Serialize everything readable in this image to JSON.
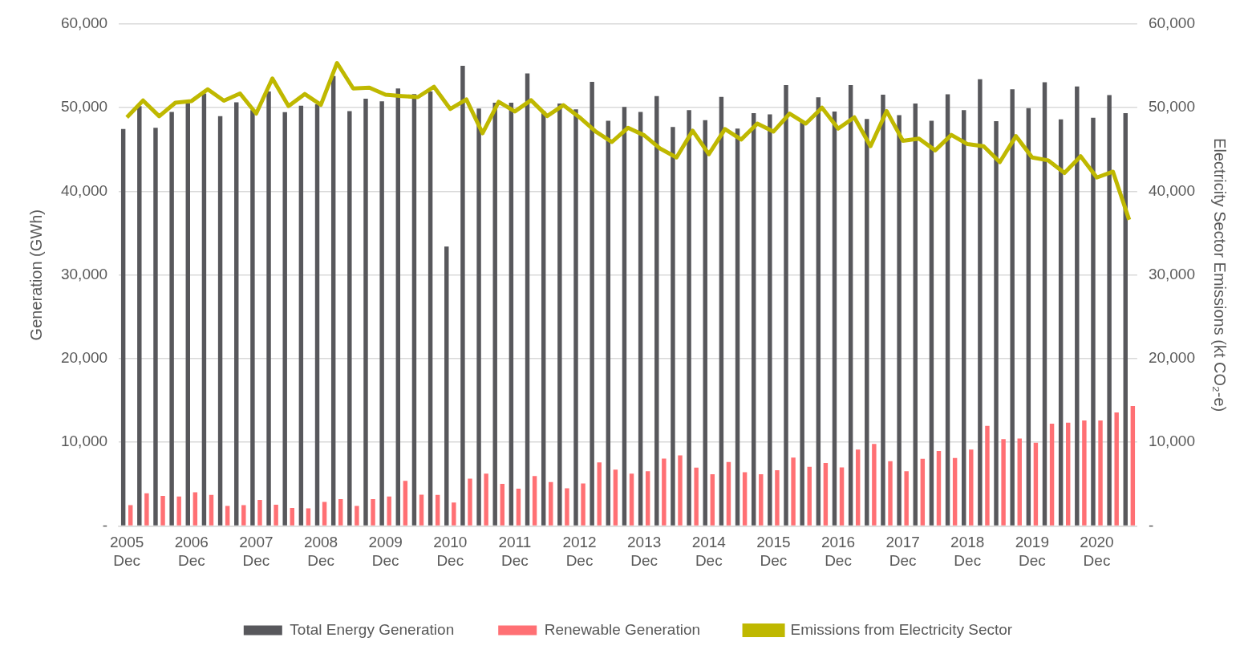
{
  "chart_data": {
    "type": "bar",
    "categories": [
      "2005 Dec",
      null,
      null,
      null,
      "2006 Dec",
      null,
      null,
      null,
      "2007 Dec",
      null,
      null,
      null,
      "2008 Dec",
      null,
      null,
      null,
      "2009 Dec",
      null,
      null,
      null,
      "2010 Dec",
      null,
      null,
      null,
      "2011 Dec",
      null,
      null,
      null,
      "2012 Dec",
      null,
      null,
      null,
      "2013 Dec",
      null,
      null,
      null,
      "2014 Dec",
      null,
      null,
      null,
      "2015 Dec",
      null,
      null,
      null,
      "2016 Dec",
      null,
      null,
      null,
      "2017 Dec",
      null,
      null,
      null,
      "2018 Dec",
      null,
      null,
      null,
      "2019 Dec",
      null,
      null,
      null,
      "2020 Dec",
      null,
      null
    ],
    "series": [
      {
        "name": "Total Energy Generation",
        "color": "#58585c",
        "values": [
          47450,
          50200,
          47600,
          49500,
          50550,
          51700,
          48980,
          50650,
          49700,
          51950,
          49470,
          50250,
          50400,
          53800,
          49600,
          51080,
          50770,
          52300,
          51640,
          51950,
          33400,
          55000,
          49900,
          50600,
          50600,
          54100,
          49600,
          50500,
          49800,
          53100,
          48450,
          50100,
          49500,
          51400,
          47700,
          49700,
          48500,
          51300,
          47500,
          49350,
          49200,
          52700,
          48300,
          51250,
          49550,
          52700,
          48650,
          51550,
          49100,
          50500,
          48450,
          51600,
          49700,
          53400,
          48400,
          52200,
          49950,
          53050,
          48600,
          52550,
          48800,
          51500,
          49350
        ]
      },
      {
        "name": "Renewable Generation",
        "color": "#ff7074",
        "values": [
          2480,
          3890,
          3600,
          3510,
          4010,
          3700,
          2380,
          2480,
          3100,
          2540,
          2160,
          2100,
          2880,
          3200,
          2380,
          3200,
          3510,
          5390,
          3730,
          3700,
          2790,
          5640,
          6240,
          5020,
          4450,
          5960,
          5240,
          4510,
          5080,
          7590,
          6740,
          6240,
          6550,
          8060,
          8430,
          6960,
          6180,
          7650,
          6430,
          6180,
          6650,
          8180,
          7060,
          7520,
          6990,
          9120,
          9810,
          7740,
          6550,
          8020,
          8970,
          8120,
          9120,
          11970,
          10380,
          10440,
          9940,
          12230,
          12350,
          12600,
          12600,
          13570,
          14330
        ]
      },
      {
        "name": "Emissions from Electricity Sector",
        "type": "line",
        "axis": "y2",
        "color": "#bfb800",
        "values": [
          48850,
          50870,
          48980,
          50600,
          50800,
          52200,
          50840,
          51700,
          49300,
          53500,
          50200,
          51640,
          50340,
          55350,
          52300,
          52400,
          51550,
          51400,
          51270,
          52500,
          49850,
          51000,
          46950,
          50700,
          49550,
          50900,
          49000,
          50300,
          48850,
          47150,
          45900,
          47600,
          46700,
          45100,
          44050,
          47250,
          44450,
          47450,
          46200,
          48100,
          47150,
          49300,
          48100,
          50000,
          47500,
          48850,
          45400,
          49600,
          46050,
          46300,
          44900,
          46750,
          45650,
          45400,
          43500,
          46600,
          44050,
          43700,
          42200,
          44200,
          41650,
          42350,
          36600
        ]
      }
    ],
    "ylabel": "Generation (GWh)",
    "y2label": "Electricity Sector Emissions (kt CO₂-e)",
    "ylim": [
      0,
      60000
    ],
    "yticks": [
      {
        "value": 0,
        "label": "-"
      },
      {
        "value": 10000,
        "label": "10,000"
      },
      {
        "value": 20000,
        "label": "20,000"
      },
      {
        "value": 30000,
        "label": "30,000"
      },
      {
        "value": 40000,
        "label": "40,000"
      },
      {
        "value": 50000,
        "label": "50,000"
      },
      {
        "value": 60000,
        "label": "60,000"
      }
    ],
    "y2lim": [
      0,
      60000
    ],
    "y2ticks": [
      {
        "value": 0,
        "label": "-"
      },
      {
        "value": 10000,
        "label": "10,000"
      },
      {
        "value": 20000,
        "label": "20,000"
      },
      {
        "value": 30000,
        "label": "30,000"
      },
      {
        "value": 40000,
        "label": "40,000"
      },
      {
        "value": 50000,
        "label": "50,000"
      },
      {
        "value": 60000,
        "label": "60,000"
      }
    ],
    "grid": "y",
    "legend": "bottom",
    "marker": "none"
  }
}
